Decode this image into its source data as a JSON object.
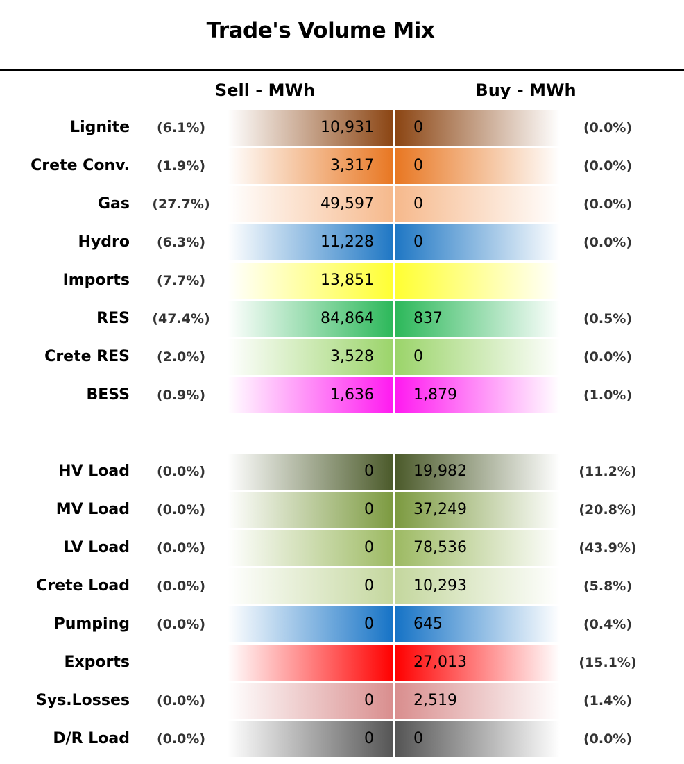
{
  "chart_data": {
    "type": "table",
    "title": "Trade's Volume Mix",
    "columns": {
      "sell": "Sell - MWh",
      "buy": "Buy - MWh"
    },
    "rows": [
      {
        "label": "Lignite",
        "sell": "10,931",
        "sell_pct": "(6.1%)",
        "buy": "0",
        "buy_pct": "(0.0%)",
        "color": "#8B4513"
      },
      {
        "label": "Crete Conv.",
        "sell": "3,317",
        "sell_pct": "(1.9%)",
        "buy": "0",
        "buy_pct": "(0.0%)",
        "color": "#E87722"
      },
      {
        "label": "Gas",
        "sell": "49,597",
        "sell_pct": "(27.7%)",
        "buy": "0",
        "buy_pct": "(0.0%)",
        "color": "#F6B98C"
      },
      {
        "label": "Hydro",
        "sell": "11,228",
        "sell_pct": "(6.3%)",
        "buy": "0",
        "buy_pct": "(0.0%)",
        "color": "#1F77C4"
      },
      {
        "label": "Imports",
        "sell": "13,851",
        "sell_pct": "(7.7%)",
        "buy": "",
        "buy_pct": "",
        "color": "#FFFF33"
      },
      {
        "label": "RES",
        "sell": "84,864",
        "sell_pct": "(47.4%)",
        "buy": "837",
        "buy_pct": "(0.5%)",
        "color": "#2CB85A"
      },
      {
        "label": "Crete RES",
        "sell": "3,528",
        "sell_pct": "(2.0%)",
        "buy": "0",
        "buy_pct": "(0.0%)",
        "color": "#9BD46A"
      },
      {
        "label": "BESS",
        "sell": "1,636",
        "sell_pct": "(0.9%)",
        "buy": "1,879",
        "buy_pct": "(1.0%)",
        "color": "#FF1AF0"
      },
      {
        "label": "HV Load",
        "sell": "0",
        "sell_pct": "(0.0%)",
        "buy": "19,982",
        "buy_pct": "(11.2%)",
        "color": "#4B5A2A"
      },
      {
        "label": "MV Load",
        "sell": "0",
        "sell_pct": "(0.0%)",
        "buy": "37,249",
        "buy_pct": "(20.8%)",
        "color": "#7C9A40"
      },
      {
        "label": "LV Load",
        "sell": "0",
        "sell_pct": "(0.0%)",
        "buy": "78,536",
        "buy_pct": "(43.9%)",
        "color": "#9DBA63"
      },
      {
        "label": "Crete Load",
        "sell": "0",
        "sell_pct": "(0.0%)",
        "buy": "10,293",
        "buy_pct": "(5.8%)",
        "color": "#C4D79E"
      },
      {
        "label": "Pumping",
        "sell": "0",
        "sell_pct": "(0.0%)",
        "buy": "645",
        "buy_pct": "(0.4%)",
        "color": "#1673C6"
      },
      {
        "label": "Exports",
        "sell": "",
        "sell_pct": "",
        "buy": "27,013",
        "buy_pct": "(15.1%)",
        "color": "#FF0000"
      },
      {
        "label": "Sys.Losses",
        "sell": "0",
        "sell_pct": "(0.0%)",
        "buy": "2,519",
        "buy_pct": "(1.4%)",
        "color": "#D98E8E"
      },
      {
        "label": "D/R Load",
        "sell": "0",
        "sell_pct": "(0.0%)",
        "buy": "0",
        "buy_pct": "(0.0%)",
        "color": "#555555"
      }
    ]
  }
}
